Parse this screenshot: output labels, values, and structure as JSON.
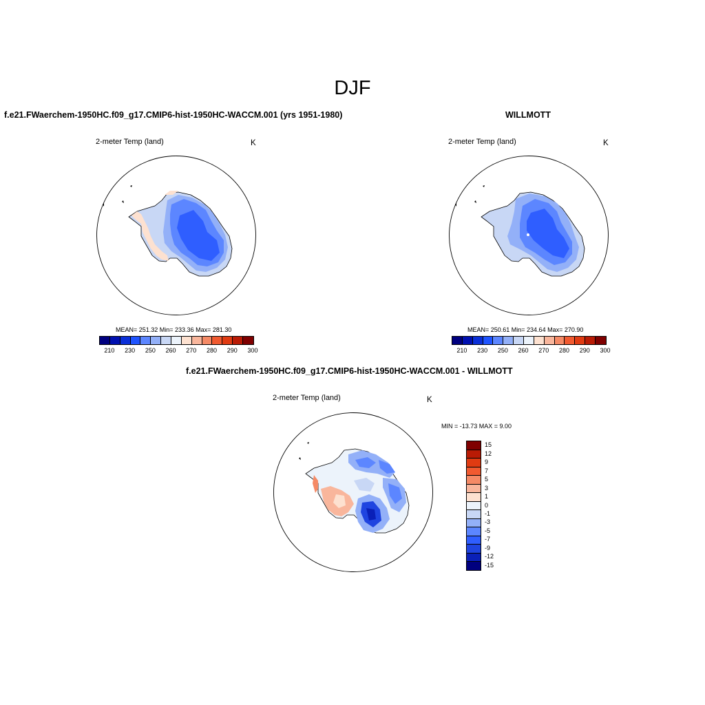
{
  "title": "DJF",
  "panels": {
    "model": {
      "title": "f.e21.FWaerchem-1950HC.f09_g17.CMIP6-hist-1950HC-WACCM.001 (yrs 1951-1980)",
      "variable": "2-meter Temp (land)",
      "units": "K",
      "stats": "MEAN= 251.32  Min= 233.36  Max= 281.30"
    },
    "obs": {
      "title": "WILLMOTT",
      "variable": "2-meter Temp (land)",
      "units": "K",
      "stats": "MEAN= 250.61  Min= 234.64  Max= 270.90"
    },
    "diff": {
      "title": "f.e21.FWaerchem-1950HC.f09_g17.CMIP6-hist-1950HC-WACCM.001 - WILLMOTT",
      "variable": "2-meter Temp (land)",
      "units": "K",
      "stats": "MIN = -13.73 MAX =   9.00"
    }
  },
  "chart_data": [
    {
      "type": "heatmap",
      "projection": "south polar stereographic",
      "title": "f.e21.FWaerchem-1950HC.f09_g17.CMIP6-hist-1950HC-WACCM.001 (yrs 1951-1980)",
      "variable": "2-meter Temp (land)",
      "units": "K",
      "mean": 251.32,
      "min": 233.36,
      "max": 281.3,
      "colorbar_labels": [
        "210",
        "230",
        "250",
        "260",
        "270",
        "280",
        "290",
        "300"
      ],
      "colorbar_colors": [
        "#00007f",
        "#0010b0",
        "#0a2fd8",
        "#1f54ff",
        "#5c86ff",
        "#93b0f8",
        "#c8d7f5",
        "#ecf3fb",
        "#fde1d0",
        "#f9b69c",
        "#f58a66",
        "#f15a30",
        "#e03b12",
        "#b91b05",
        "#7f0000"
      ],
      "field_colors": [
        "#c8d7f5",
        "#93b0f8",
        "#5c86ff",
        "#2f5eff",
        "#fde1d0"
      ]
    },
    {
      "type": "heatmap",
      "projection": "south polar stereographic",
      "title": "WILLMOTT",
      "variable": "2-meter Temp (land)",
      "units": "K",
      "mean": 250.61,
      "min": 234.64,
      "max": 270.9,
      "colorbar_labels": [
        "210",
        "230",
        "250",
        "260",
        "270",
        "280",
        "290",
        "300"
      ],
      "colorbar_colors": [
        "#00007f",
        "#0010b0",
        "#0a2fd8",
        "#1f54ff",
        "#5c86ff",
        "#93b0f8",
        "#c8d7f5",
        "#ecf3fb",
        "#fde1d0",
        "#f9b69c",
        "#f58a66",
        "#f15a30",
        "#e03b12",
        "#b91b05",
        "#7f0000"
      ],
      "field_colors": [
        "#c8d7f5",
        "#93b0f8",
        "#5c86ff",
        "#2f5eff"
      ]
    },
    {
      "type": "heatmap",
      "projection": "south polar stereographic",
      "title": "f.e21.FWaerchem-1950HC.f09_g17.CMIP6-hist-1950HC-WACCM.001 - WILLMOTT",
      "variable": "2-meter Temp (land)",
      "units": "K",
      "min": -13.73,
      "max": 9.0,
      "colorbar_labels": [
        "15",
        "12",
        "9",
        "7",
        "5",
        "3",
        "1",
        "0",
        "-1",
        "-3",
        "-5",
        "-7",
        "-9",
        "-12",
        "-15"
      ],
      "colorbar_colors": [
        "#7f0000",
        "#b91b05",
        "#e03b12",
        "#f15a30",
        "#f58a66",
        "#f9b69c",
        "#fde1d0",
        "#ecf3fb",
        "#c8d7f5",
        "#93b0f8",
        "#5c86ff",
        "#2f5eff",
        "#1f44e0",
        "#0a20b8",
        "#00007f"
      ],
      "field_colors": [
        "#c8d7f5",
        "#93b0f8",
        "#5c86ff",
        "#fde1d0",
        "#f9b69c",
        "#f58a66",
        "#1f44e0"
      ]
    }
  ]
}
